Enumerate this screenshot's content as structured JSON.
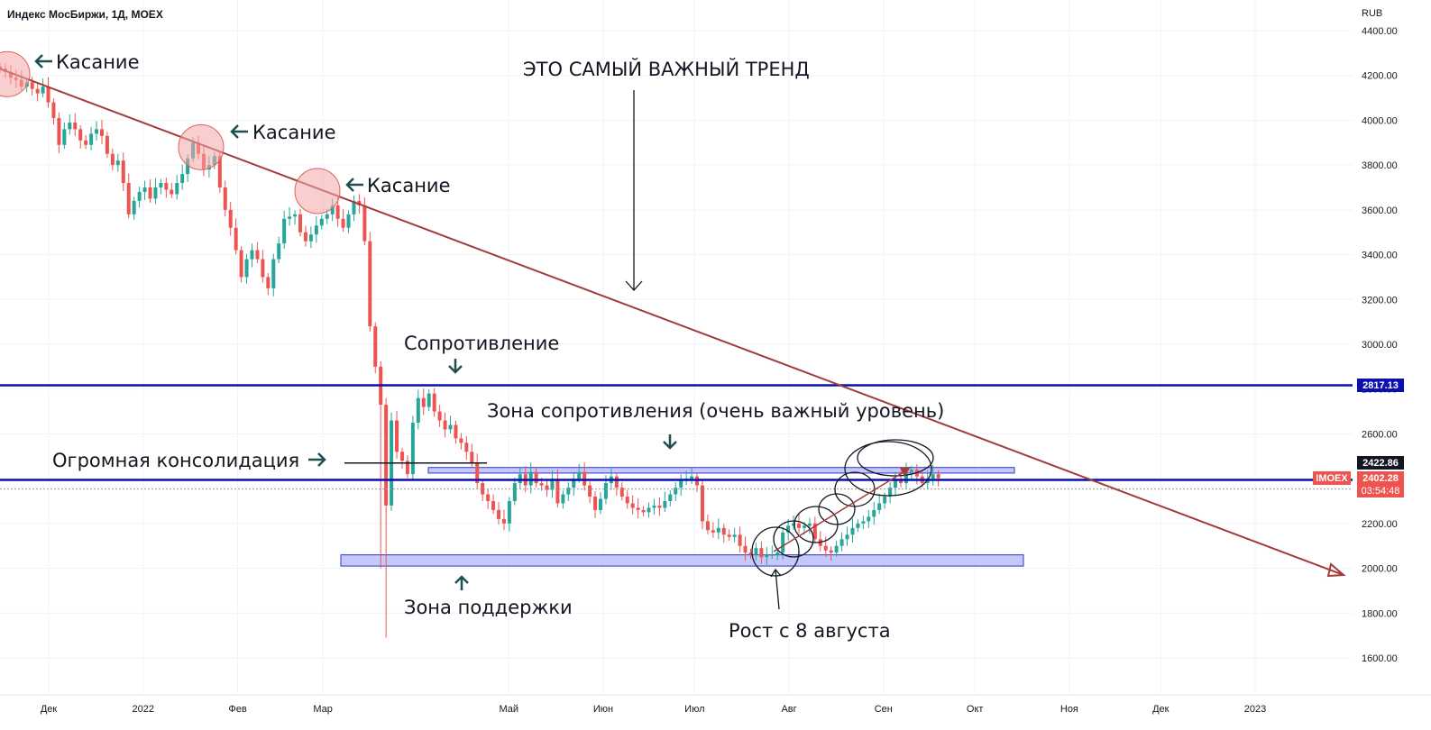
{
  "header": {
    "title": "Индекс МосБиржи, 1Д, MOEX",
    "currency": "RUB"
  },
  "colors": {
    "up": "#26a69a",
    "down": "#ef5350",
    "trend": "#a23b3b",
    "level": "#0b10b0",
    "zone_fill": "#b2b5f7",
    "zone_stroke": "#3035c7",
    "price_tag": "#ef5350",
    "level_tag": "#0b10b0",
    "touch_circle": "#f4a6a6"
  },
  "chart_data": {
    "type": "candlestick",
    "y_axis": {
      "min": 1600,
      "max": 4400,
      "ticks": [
        "4400.00",
        "4200.00",
        "4000.00",
        "3800.00",
        "3600.00",
        "3400.00",
        "3200.00",
        "3000.00",
        "2800.00",
        "2600.00",
        "2400.00",
        "2200.00",
        "2000.00",
        "1800.00",
        "1600.00"
      ],
      "tick_values": [
        4400,
        4200,
        4000,
        3800,
        3600,
        3400,
        3200,
        3000,
        2800,
        2600,
        2400,
        2200,
        2000,
        1800,
        1600
      ]
    },
    "x_axis": {
      "labels": [
        "Дек",
        "2022",
        "Фев",
        "Мар",
        "Май",
        "Июн",
        "Июл",
        "Авг",
        "Сен",
        "Окт",
        "Ноя",
        "Дек",
        "2023"
      ],
      "dates": [
        "2021-12-01",
        "2022-01-01",
        "2022-02-01",
        "2022-03-01",
        "2022-05-01",
        "2022-06-01",
        "2022-07-01",
        "2022-08-01",
        "2022-09-01",
        "2022-10-01",
        "2022-11-01",
        "2022-12-01",
        "2023-01-01"
      ]
    },
    "closes": [
      4230,
      4215,
      4190,
      4180,
      4150,
      4170,
      4140,
      4120,
      4150,
      4080,
      4010,
      3890,
      3960,
      3990,
      3960,
      3910,
      3890,
      3940,
      3960,
      3930,
      3850,
      3800,
      3820,
      3720,
      3580,
      3640,
      3680,
      3700,
      3650,
      3700,
      3720,
      3690,
      3670,
      3720,
      3760,
      3830,
      3900,
      3850,
      3780,
      3800,
      3840,
      3700,
      3600,
      3520,
      3420,
      3300,
      3380,
      3420,
      3380,
      3300,
      3250,
      3380,
      3450,
      3560,
      3570,
      3580,
      3500,
      3460,
      3490,
      3530,
      3560,
      3580,
      3620,
      3560,
      3520,
      3580,
      3640,
      3620,
      3460,
      3080,
      2900,
      2730,
      2280,
      2660,
      2520,
      2480,
      2420,
      2650,
      2760,
      2720,
      2780,
      2700,
      2660,
      2620,
      2640,
      2580,
      2560,
      2520,
      2470,
      2380,
      2330,
      2300,
      2260,
      2220,
      2200,
      2300,
      2380,
      2420,
      2370,
      2430,
      2380,
      2370,
      2350,
      2400,
      2290,
      2330,
      2360,
      2400,
      2430,
      2370,
      2320,
      2260,
      2310,
      2380,
      2410,
      2360,
      2320,
      2290,
      2270,
      2260,
      2250,
      2270,
      2280,
      2270,
      2300,
      2330,
      2360,
      2390,
      2400,
      2410,
      2370,
      2210,
      2170,
      2160,
      2180,
      2150,
      2140,
      2150,
      2100,
      2070,
      2060,
      2090,
      2050,
      2060,
      2060,
      2070,
      2160,
      2190,
      2200,
      2180,
      2190,
      2200,
      2130,
      2100,
      2080,
      2070,
      2100,
      2130,
      2150,
      2180,
      2200,
      2210,
      2230,
      2260,
      2290,
      2320,
      2360,
      2400,
      2380,
      2430,
      2440,
      2410,
      2380,
      2400,
      2420,
      2402.28
    ],
    "dates": [
      "2021-11-15",
      "2022-08-08",
      "2022-09-19"
    ],
    "series": [
      {
        "name": "MOEX",
        "last": 2402.28
      }
    ],
    "trendline": {
      "from": {
        "date": "2021-11-15",
        "value": 4230
      },
      "to": {
        "date": "2023-01-15",
        "value": 1980
      }
    },
    "levels": [
      {
        "label": "2817.13",
        "value": 2817.13
      },
      {
        "label": "2422.86",
        "value": 2422.86
      }
    ],
    "price_tag": {
      "symbol": "IMOEX",
      "value": "2402.28",
      "countdown": "03:54:48"
    },
    "zones": [
      {
        "name": "resistance-zone",
        "from": 2425,
        "to": 2450
      },
      {
        "name": "support-zone",
        "from": 2010,
        "to": 2060
      }
    ],
    "consolidation_line": 2470
  },
  "annotations": {
    "touch": "Касание",
    "main_trend": "ЭТО САМЫЙ ВАЖНЫЙ ТРЕНД",
    "resistance": "Сопротивление",
    "resistance_zone": "Зона сопротивления (очень важный уровень)",
    "consolidation": "Огромная консолидация",
    "support_zone": "Зона поддержки",
    "growth": "Рост с 8 августа"
  }
}
